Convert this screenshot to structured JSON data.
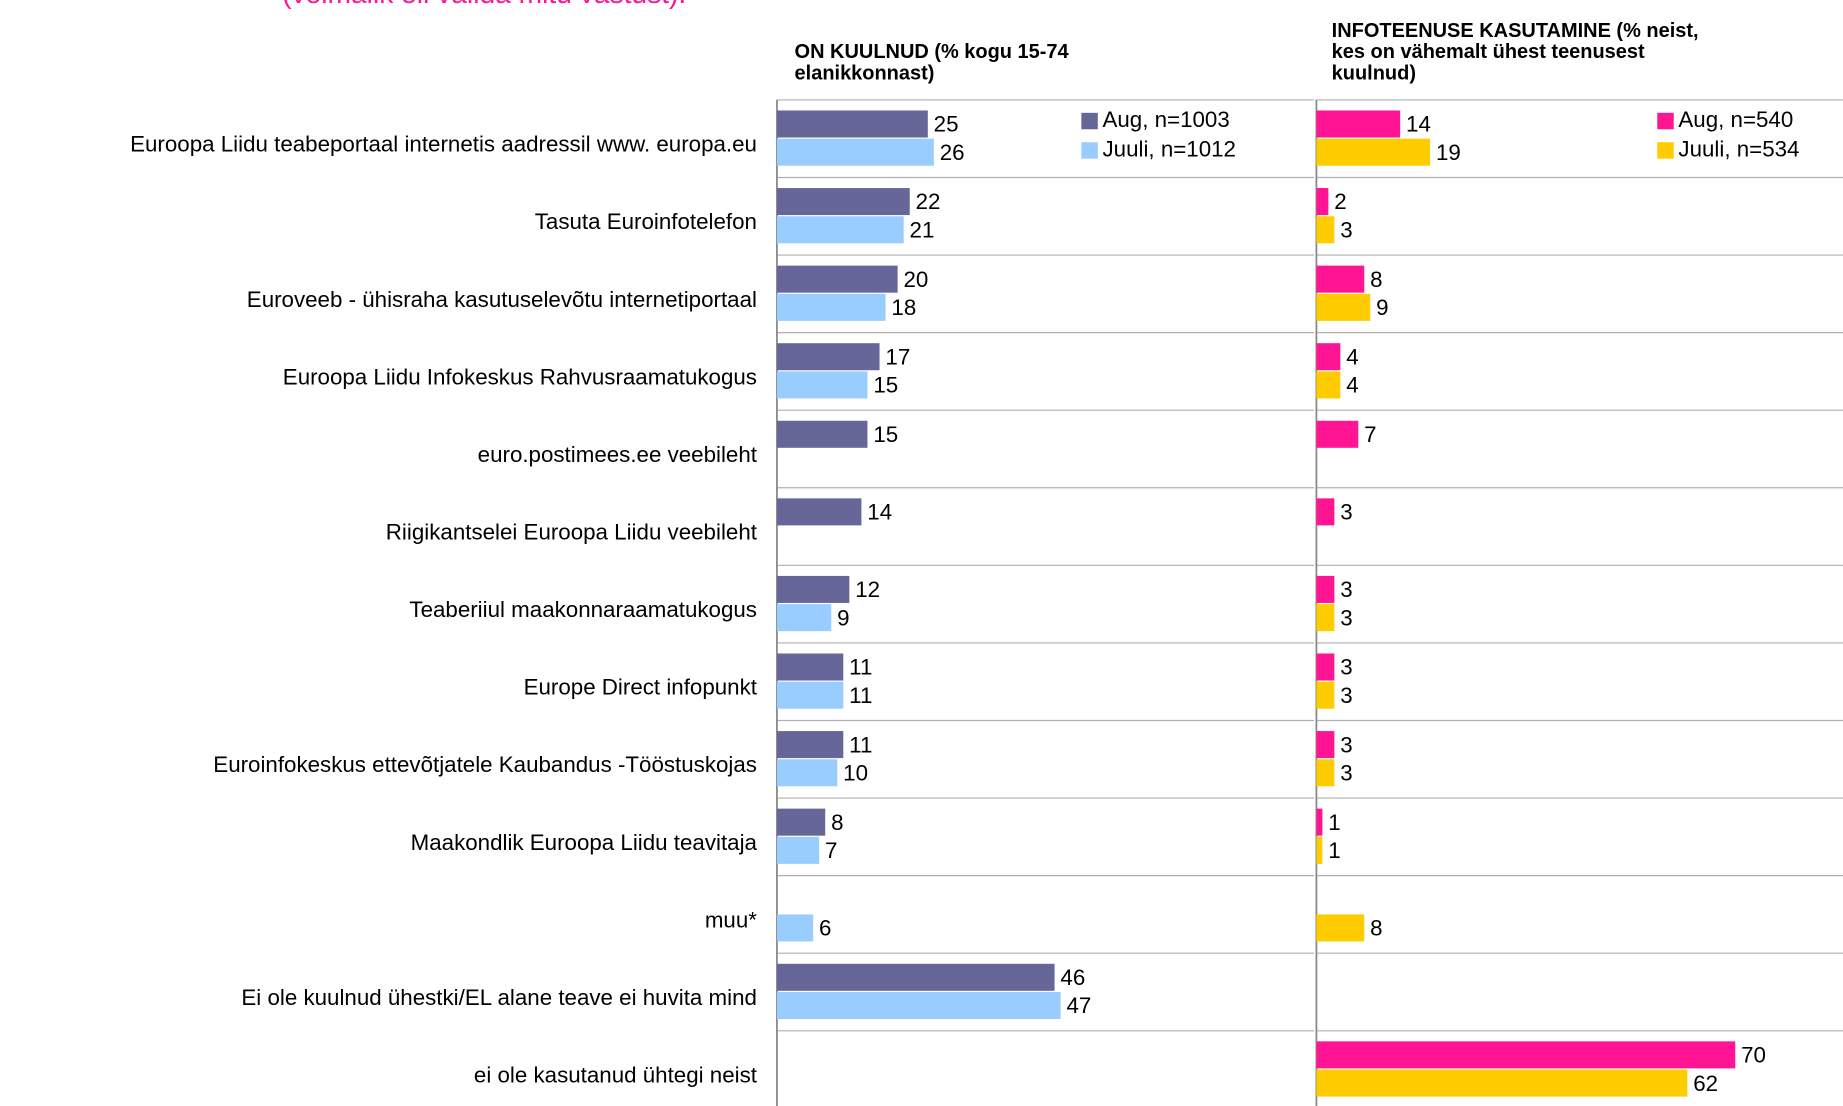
{
  "subtitle": "(võimalik oli valida mitu vastust).",
  "chart_data": [
    {
      "type": "bar",
      "orientation": "horizontal",
      "title": [
        "ON KUULNUD (% kogu 15-74",
        "elanikkonnast)"
      ],
      "categories": [
        "Euroopa Liidu teabeportaal internetis aadressil www. europa.eu",
        "Tasuta Euroinfotelefon",
        "Euroveeb - ühisraha kasutuselevõtu internetiportaal",
        "Euroopa Liidu Infokeskus Rahvusraamatukogus",
        "euro.postimees.ee veebileht",
        "Riigikantselei Euroopa Liidu veebileht",
        "Teaberiiul maakonnaraamatukogus",
        "Europe Direct infopunkt",
        "Euroinfokeskus ettevõtjatele Kaubandus -Tööstuskojas",
        "Maakondlik Euroopa Liidu teavitaja",
        "muu*",
        "Ei ole kuulnud ühestki/EL alane teave ei huvita mind",
        "ei ole kasutanud ühtegi neist"
      ],
      "xlim": [
        0,
        89
      ],
      "series": [
        {
          "name": "Aug, n=1003",
          "color": "#666699",
          "values": [
            25,
            22,
            20,
            17,
            15,
            14,
            12,
            11,
            11,
            8,
            null,
            46,
            null
          ]
        },
        {
          "name": "Juuli, n=1012",
          "color": "#99ccff",
          "values": [
            26,
            21,
            18,
            15,
            null,
            null,
            9,
            11,
            10,
            7,
            6,
            47,
            null
          ]
        }
      ]
    },
    {
      "type": "bar",
      "orientation": "horizontal",
      "title": [
        "INFOTEENUSE KASUTAMINE (% neist,",
        "kes on vähemalt ühest teenusest",
        "kuulnud)"
      ],
      "xlim": [
        0,
        88
      ],
      "series": [
        {
          "name": "Aug, n=540",
          "color": "#ff1493",
          "values": [
            14,
            2,
            8,
            4,
            7,
            3,
            3,
            3,
            3,
            1,
            null,
            null,
            70
          ]
        },
        {
          "name": "Juuli, n=534",
          "color": "#ffcc00",
          "values": [
            19,
            3,
            9,
            4,
            null,
            null,
            3,
            3,
            3,
            1,
            8,
            null,
            62
          ]
        }
      ]
    }
  ]
}
